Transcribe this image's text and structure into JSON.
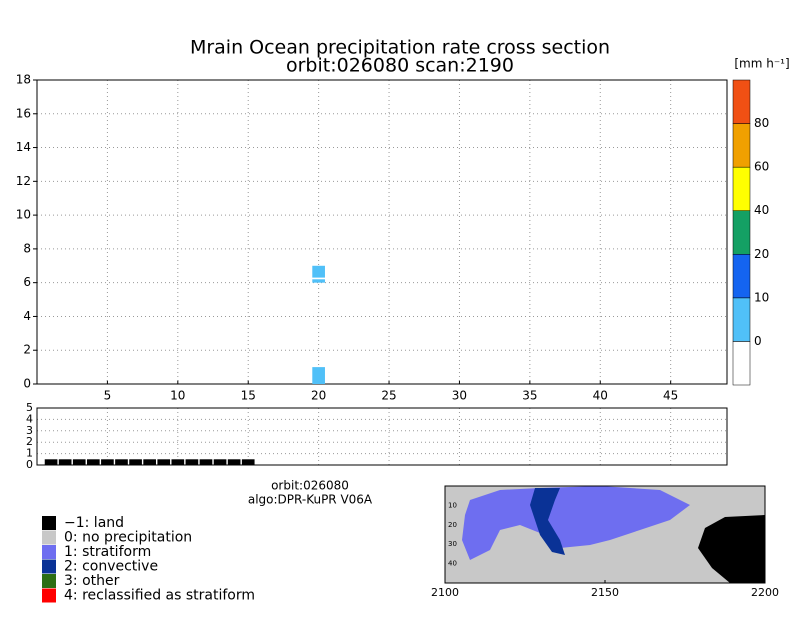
{
  "chart_data": {
    "type": "cross_section",
    "title": "Mrain Ocean precipitation rate cross section",
    "subtitle": "orbit:026080    scan:2190",
    "colorbar_unit": "[mm h⁻¹]",
    "xlim": [
      0,
      49
    ],
    "xticks": [
      5,
      10,
      15,
      20,
      25,
      30,
      35,
      40,
      45
    ],
    "ylim": [
      0,
      18
    ],
    "yticks": [
      0,
      2,
      4,
      6,
      8,
      10,
      12,
      14,
      16,
      18
    ],
    "grid": true,
    "cells": [
      {
        "x": 20,
        "y0": 0,
        "y1": 1
      },
      {
        "x": 20,
        "y0": 6,
        "y1": 6.2
      },
      {
        "x": 20,
        "y0": 6.3,
        "y1": 7
      }
    ],
    "cell_color": "#50c0f8",
    "colorbar_levels": [
      0,
      10,
      20,
      40,
      60,
      80
    ],
    "colorbar_colors": [
      "#ffffff",
      "#50c0f8",
      "#1464f0",
      "#14a064",
      "#ffff00",
      "#f0a000",
      "#f05014"
    ],
    "lower": {
      "ylim": [
        0,
        5
      ],
      "yticks": [
        0,
        1,
        2,
        3,
        4,
        5
      ],
      "x": [
        1,
        2,
        3,
        4,
        5,
        6,
        7,
        8,
        9,
        10,
        11,
        12,
        13,
        14,
        15
      ],
      "values": [
        0.5,
        0.5,
        0.5,
        0.5,
        0.5,
        0.5,
        0.5,
        0.5,
        0.5,
        0.5,
        0.5,
        0.5,
        0.5,
        0.5,
        0.5
      ],
      "color": "#000000"
    },
    "info": [
      "orbit:026080",
      "algo:DPR-KuPR V06A"
    ],
    "legend": [
      {
        "name": "−1: land",
        "color": "#000000"
      },
      {
        "name": "0: no precipitation",
        "color": "#c8c8c8"
      },
      {
        "name": "1: stratiform",
        "color": "#6e6ef0"
      },
      {
        "name": "2: convective",
        "color": "#0a3296"
      },
      {
        "name": "3: other",
        "color": "#2d6e14"
      },
      {
        "name": "4: reclassified as stratiform",
        "color": "#ff0000"
      }
    ],
    "map": {
      "xlim": [
        2100,
        2200
      ],
      "xticks": [
        2100,
        2150,
        2200
      ],
      "ylim": [
        0,
        50
      ],
      "yticks": [
        10,
        20,
        30,
        40
      ]
    }
  }
}
